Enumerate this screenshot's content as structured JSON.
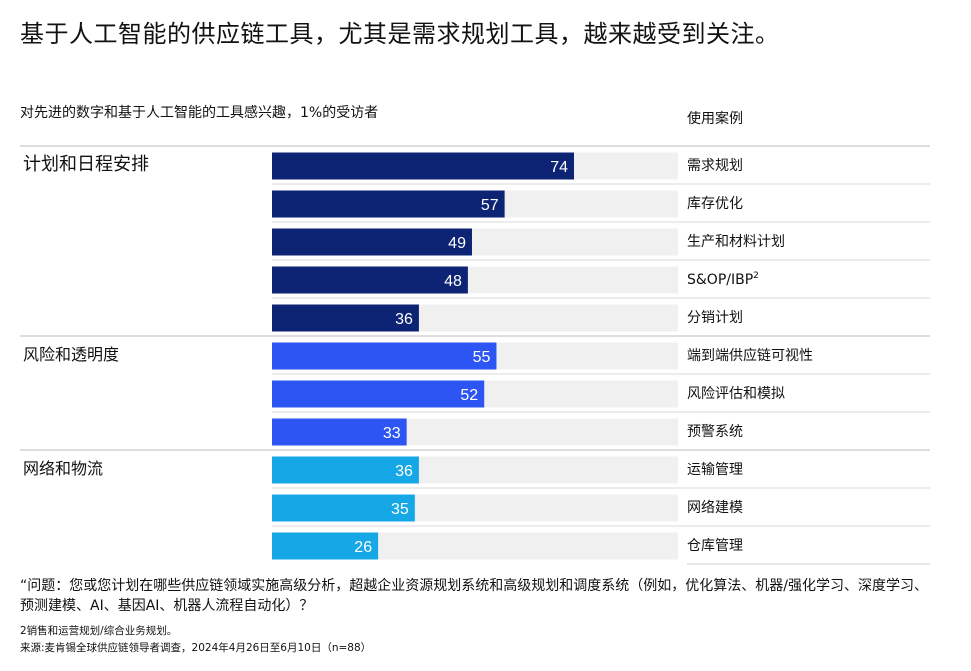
{
  "header": {
    "title": "基于人工智能的供应链工具，尤其是需求规划工具，越来越受到关注。",
    "subtitle": "对先进的数字和基于人工智能的工具感兴趣，1%的受访者",
    "right_column_header": "使用案例"
  },
  "colors": {
    "planning": "#0d2374",
    "risk": "#2c55f4",
    "network": "#16a7e6",
    "track": "#f0f0f0"
  },
  "chart_data": {
    "type": "bar",
    "orientation": "horizontal",
    "xlim": [
      0,
      100
    ],
    "groups": [
      {
        "name": "计划和日程安排",
        "color_key": "planning",
        "items": [
          {
            "label": "需求规划",
            "value": 74
          },
          {
            "label": "库存优化",
            "value": 57
          },
          {
            "label": "生产和材料计划",
            "value": 49
          },
          {
            "label": "S&OP/IBP",
            "sup": "2",
            "value": 48
          },
          {
            "label": "分销计划",
            "value": 36
          }
        ]
      },
      {
        "name": "风险和透明度",
        "color_key": "risk",
        "items": [
          {
            "label": "端到端供应链可视性",
            "value": 55
          },
          {
            "label": "风险评估和模拟",
            "value": 52
          },
          {
            "label": "预警系统",
            "value": 33
          }
        ]
      },
      {
        "name": "网络和物流",
        "color_key": "network",
        "items": [
          {
            "label": "运输管理",
            "value": 36
          },
          {
            "label": "网络建模",
            "value": 35
          },
          {
            "label": "仓库管理",
            "value": 26
          }
        ]
      }
    ]
  },
  "footer": {
    "question": "“问题：您或您计划在哪些供应链领域实施高级分析，超越企业资源规划系统和高级规划和调度系统（例如，优化算法、机器/强化学习、深度学习、预测建模、AI、基因AI、机器人流程自动化）？",
    "note": "2销售和运营规划/综合业务规划。",
    "source": "来源:麦肯锡全球供应链领导者调查，2024年4月26日至6月10日（n=88）"
  }
}
